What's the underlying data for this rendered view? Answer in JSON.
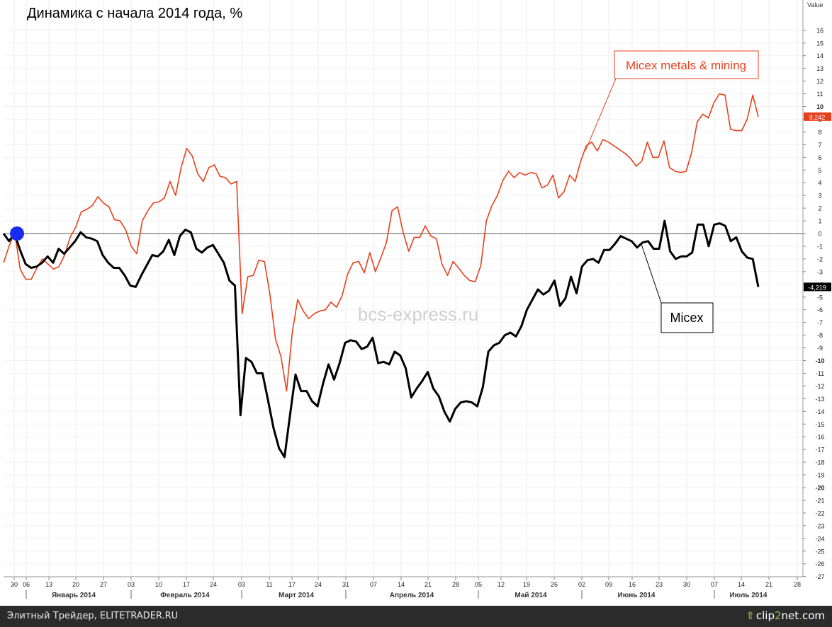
{
  "chart_data": {
    "type": "line",
    "title": "Динамика с начала 2014 года, %",
    "ylabel": "Value",
    "ylim": [
      -27.5,
      18
    ],
    "y_ticks": [
      16,
      15,
      14,
      13,
      12,
      11,
      10,
      9,
      8,
      7,
      6,
      5,
      4,
      3,
      2,
      1,
      0,
      -1,
      -2,
      -3,
      -4,
      -5,
      -6,
      -7,
      -8,
      -9,
      -10,
      -11,
      -12,
      -13,
      -14,
      -15,
      -16,
      -17,
      -18,
      -19,
      -20,
      -21,
      -22,
      -23,
      -24,
      -25,
      -26,
      -27
    ],
    "x_ticks": [
      "30",
      "06",
      "13",
      "20",
      "27",
      "03",
      "10",
      "17",
      "24",
      "03",
      "11",
      "17",
      "24",
      "31",
      "07",
      "14",
      "21",
      "28",
      "05",
      "12",
      "19",
      "26",
      "02",
      "09",
      "16",
      "23",
      "30",
      "07",
      "14",
      "21",
      "28"
    ],
    "months": [
      "Январь 2014",
      "Февраль 2014",
      "Март 2014",
      "Апрель 2014",
      "Май 2014",
      "Июнь 2014",
      "Июль 2014"
    ],
    "watermark": "bcs-express.ru",
    "series": [
      {
        "name": "Micex metals & mining",
        "color": "#e8401c",
        "last_label": "9,242",
        "values": [
          -2.3,
          -1.0,
          0.1,
          -2.8,
          -3.6,
          -3.6,
          -2.7,
          -2.0,
          -2.4,
          -2.8,
          -2.6,
          -1.7,
          -0.3,
          0.5,
          1.7,
          1.9,
          2.2,
          2.9,
          2.4,
          2.1,
          1.1,
          1.0,
          0.3,
          -1.0,
          -1.6,
          1.0,
          1.8,
          2.4,
          2.5,
          2.8,
          4.1,
          3.0,
          5.2,
          6.7,
          6.1,
          4.7,
          4.1,
          5.2,
          5.4,
          4.5,
          4.4,
          3.9,
          4.1,
          -6.3,
          -3.4,
          -3.3,
          -2.1,
          -2.2,
          -4.8,
          -8.3,
          -9.7,
          -12.4,
          -7.9,
          -5.2,
          -6.1,
          -6.7,
          -6.3,
          -6.1,
          -6.0,
          -5.4,
          -5.8,
          -4.9,
          -3.2,
          -2.3,
          -2.2,
          -3.1,
          -1.5,
          -3.0,
          -1.9,
          -0.7,
          1.8,
          2.1,
          0.1,
          -1.4,
          -0.3,
          -0.3,
          0.6,
          -0.2,
          -0.4,
          -2.4,
          -3.3,
          -2.2,
          -2.7,
          -3.3,
          -3.7,
          -3.8,
          -2.5,
          1.0,
          2.2,
          3.0,
          4.2,
          4.9,
          4.4,
          4.8,
          4.6,
          4.8,
          4.7,
          3.6,
          3.8,
          4.6,
          2.8,
          3.3,
          4.6,
          4.1,
          5.7,
          6.9,
          7.2,
          6.5,
          7.4,
          7.2,
          6.9,
          6.6,
          6.3,
          5.9,
          5.3,
          5.7,
          7.2,
          6.0,
          6.0,
          7.3,
          5.2,
          4.9,
          4.8,
          4.9,
          6.4,
          8.8,
          9.4,
          9.1,
          10.3,
          11.0,
          10.9,
          8.2,
          8.1,
          8.1,
          9.0,
          10.9,
          9.2
        ]
      },
      {
        "name": "Micex",
        "color": "#000000",
        "last_label": "-4,219",
        "values": [
          0.0,
          -0.6,
          0.0,
          -1.3,
          -2.4,
          -2.7,
          -2.6,
          -2.3,
          -1.8,
          -2.3,
          -1.2,
          -1.6,
          -1.1,
          -0.6,
          0.1,
          -0.3,
          -0.4,
          -0.6,
          -1.7,
          -2.3,
          -2.7,
          -2.7,
          -3.3,
          -4.1,
          -4.2,
          -3.3,
          -2.5,
          -1.7,
          -1.8,
          -1.4,
          -0.5,
          -1.7,
          -0.2,
          0.3,
          0.1,
          -1.2,
          -1.5,
          -1.1,
          -0.9,
          -1.6,
          -2.3,
          -3.7,
          -4.1,
          -14.3,
          -9.8,
          -10.1,
          -11.0,
          -11.0,
          -13.1,
          -15.3,
          -16.9,
          -17.6,
          -14.3,
          -11.1,
          -12.4,
          -12.4,
          -13.2,
          -13.6,
          -11.8,
          -10.3,
          -11.5,
          -10.2,
          -8.6,
          -8.4,
          -8.5,
          -9.1,
          -8.9,
          -8.2,
          -10.2,
          -10.1,
          -10.3,
          -9.3,
          -9.6,
          -10.6,
          -12.9,
          -12.2,
          -11.6,
          -10.9,
          -12.2,
          -12.8,
          -14.0,
          -14.8,
          -13.8,
          -13.3,
          -13.2,
          -13.3,
          -13.6,
          -12.1,
          -9.3,
          -8.8,
          -8.6,
          -8.0,
          -7.8,
          -8.1,
          -7.3,
          -6.0,
          -5.2,
          -4.4,
          -4.8,
          -4.5,
          -3.7,
          -5.7,
          -5.1,
          -3.4,
          -4.7,
          -2.6,
          -2.1,
          -2.0,
          -2.3,
          -1.3,
          -1.3,
          -0.8,
          -0.2,
          -0.4,
          -0.6,
          -1.1,
          -0.7,
          -0.6,
          -1.2,
          -1.2,
          1.0,
          -1.4,
          -2.0,
          -1.8,
          -1.8,
          -1.5,
          0.7,
          0.7,
          -1.0,
          0.7,
          0.8,
          0.6,
          -0.6,
          -0.3,
          -1.4,
          -1.9,
          -2.0,
          -4.2
        ]
      }
    ],
    "annotations": [
      "Micex metals & mining",
      "Micex"
    ]
  },
  "footer": {
    "left": "Элитный Трейдер, ELITETRADER.RU",
    "right_arrow": "⇧",
    "right_prefix": "clip",
    "right_accent": "2",
    "right_suffix": "net",
    "right_dot": ".",
    "right_end": "com"
  }
}
